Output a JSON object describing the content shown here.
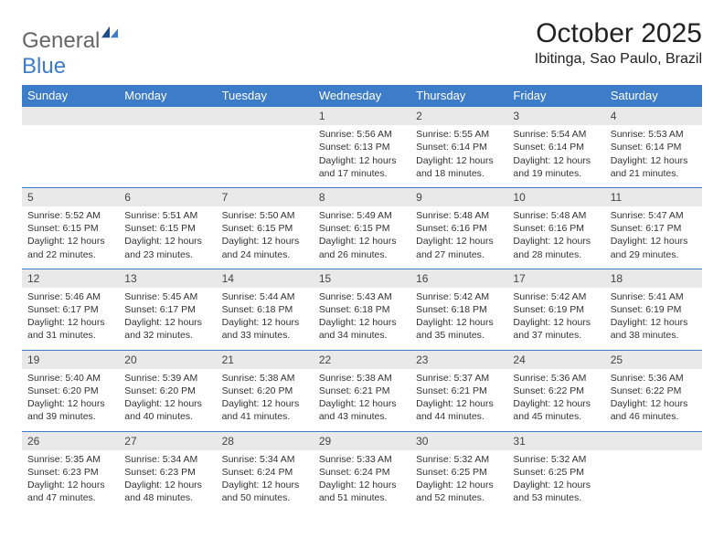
{
  "logo": {
    "word1": "General",
    "word2": "Blue",
    "color_gray": "#666666",
    "color_blue": "#3d7cc9"
  },
  "header": {
    "month_title": "October 2025",
    "location": "Ibitinga, Sao Paulo, Brazil"
  },
  "calendar": {
    "header_bg": "#3d7cc9",
    "header_fg": "#ffffff",
    "daynum_bg": "#e9e9e9",
    "border_color": "#3d7cc9",
    "day_labels": [
      "Sunday",
      "Monday",
      "Tuesday",
      "Wednesday",
      "Thursday",
      "Friday",
      "Saturday"
    ],
    "weeks": [
      [
        null,
        null,
        null,
        {
          "n": "1",
          "sr": "Sunrise: 5:56 AM",
          "ss": "Sunset: 6:13 PM",
          "dl1": "Daylight: 12 hours",
          "dl2": "and 17 minutes."
        },
        {
          "n": "2",
          "sr": "Sunrise: 5:55 AM",
          "ss": "Sunset: 6:14 PM",
          "dl1": "Daylight: 12 hours",
          "dl2": "and 18 minutes."
        },
        {
          "n": "3",
          "sr": "Sunrise: 5:54 AM",
          "ss": "Sunset: 6:14 PM",
          "dl1": "Daylight: 12 hours",
          "dl2": "and 19 minutes."
        },
        {
          "n": "4",
          "sr": "Sunrise: 5:53 AM",
          "ss": "Sunset: 6:14 PM",
          "dl1": "Daylight: 12 hours",
          "dl2": "and 21 minutes."
        }
      ],
      [
        {
          "n": "5",
          "sr": "Sunrise: 5:52 AM",
          "ss": "Sunset: 6:15 PM",
          "dl1": "Daylight: 12 hours",
          "dl2": "and 22 minutes."
        },
        {
          "n": "6",
          "sr": "Sunrise: 5:51 AM",
          "ss": "Sunset: 6:15 PM",
          "dl1": "Daylight: 12 hours",
          "dl2": "and 23 minutes."
        },
        {
          "n": "7",
          "sr": "Sunrise: 5:50 AM",
          "ss": "Sunset: 6:15 PM",
          "dl1": "Daylight: 12 hours",
          "dl2": "and 24 minutes."
        },
        {
          "n": "8",
          "sr": "Sunrise: 5:49 AM",
          "ss": "Sunset: 6:15 PM",
          "dl1": "Daylight: 12 hours",
          "dl2": "and 26 minutes."
        },
        {
          "n": "9",
          "sr": "Sunrise: 5:48 AM",
          "ss": "Sunset: 6:16 PM",
          "dl1": "Daylight: 12 hours",
          "dl2": "and 27 minutes."
        },
        {
          "n": "10",
          "sr": "Sunrise: 5:48 AM",
          "ss": "Sunset: 6:16 PM",
          "dl1": "Daylight: 12 hours",
          "dl2": "and 28 minutes."
        },
        {
          "n": "11",
          "sr": "Sunrise: 5:47 AM",
          "ss": "Sunset: 6:17 PM",
          "dl1": "Daylight: 12 hours",
          "dl2": "and 29 minutes."
        }
      ],
      [
        {
          "n": "12",
          "sr": "Sunrise: 5:46 AM",
          "ss": "Sunset: 6:17 PM",
          "dl1": "Daylight: 12 hours",
          "dl2": "and 31 minutes."
        },
        {
          "n": "13",
          "sr": "Sunrise: 5:45 AM",
          "ss": "Sunset: 6:17 PM",
          "dl1": "Daylight: 12 hours",
          "dl2": "and 32 minutes."
        },
        {
          "n": "14",
          "sr": "Sunrise: 5:44 AM",
          "ss": "Sunset: 6:18 PM",
          "dl1": "Daylight: 12 hours",
          "dl2": "and 33 minutes."
        },
        {
          "n": "15",
          "sr": "Sunrise: 5:43 AM",
          "ss": "Sunset: 6:18 PM",
          "dl1": "Daylight: 12 hours",
          "dl2": "and 34 minutes."
        },
        {
          "n": "16",
          "sr": "Sunrise: 5:42 AM",
          "ss": "Sunset: 6:18 PM",
          "dl1": "Daylight: 12 hours",
          "dl2": "and 35 minutes."
        },
        {
          "n": "17",
          "sr": "Sunrise: 5:42 AM",
          "ss": "Sunset: 6:19 PM",
          "dl1": "Daylight: 12 hours",
          "dl2": "and 37 minutes."
        },
        {
          "n": "18",
          "sr": "Sunrise: 5:41 AM",
          "ss": "Sunset: 6:19 PM",
          "dl1": "Daylight: 12 hours",
          "dl2": "and 38 minutes."
        }
      ],
      [
        {
          "n": "19",
          "sr": "Sunrise: 5:40 AM",
          "ss": "Sunset: 6:20 PM",
          "dl1": "Daylight: 12 hours",
          "dl2": "and 39 minutes."
        },
        {
          "n": "20",
          "sr": "Sunrise: 5:39 AM",
          "ss": "Sunset: 6:20 PM",
          "dl1": "Daylight: 12 hours",
          "dl2": "and 40 minutes."
        },
        {
          "n": "21",
          "sr": "Sunrise: 5:38 AM",
          "ss": "Sunset: 6:20 PM",
          "dl1": "Daylight: 12 hours",
          "dl2": "and 41 minutes."
        },
        {
          "n": "22",
          "sr": "Sunrise: 5:38 AM",
          "ss": "Sunset: 6:21 PM",
          "dl1": "Daylight: 12 hours",
          "dl2": "and 43 minutes."
        },
        {
          "n": "23",
          "sr": "Sunrise: 5:37 AM",
          "ss": "Sunset: 6:21 PM",
          "dl1": "Daylight: 12 hours",
          "dl2": "and 44 minutes."
        },
        {
          "n": "24",
          "sr": "Sunrise: 5:36 AM",
          "ss": "Sunset: 6:22 PM",
          "dl1": "Daylight: 12 hours",
          "dl2": "and 45 minutes."
        },
        {
          "n": "25",
          "sr": "Sunrise: 5:36 AM",
          "ss": "Sunset: 6:22 PM",
          "dl1": "Daylight: 12 hours",
          "dl2": "and 46 minutes."
        }
      ],
      [
        {
          "n": "26",
          "sr": "Sunrise: 5:35 AM",
          "ss": "Sunset: 6:23 PM",
          "dl1": "Daylight: 12 hours",
          "dl2": "and 47 minutes."
        },
        {
          "n": "27",
          "sr": "Sunrise: 5:34 AM",
          "ss": "Sunset: 6:23 PM",
          "dl1": "Daylight: 12 hours",
          "dl2": "and 48 minutes."
        },
        {
          "n": "28",
          "sr": "Sunrise: 5:34 AM",
          "ss": "Sunset: 6:24 PM",
          "dl1": "Daylight: 12 hours",
          "dl2": "and 50 minutes."
        },
        {
          "n": "29",
          "sr": "Sunrise: 5:33 AM",
          "ss": "Sunset: 6:24 PM",
          "dl1": "Daylight: 12 hours",
          "dl2": "and 51 minutes."
        },
        {
          "n": "30",
          "sr": "Sunrise: 5:32 AM",
          "ss": "Sunset: 6:25 PM",
          "dl1": "Daylight: 12 hours",
          "dl2": "and 52 minutes."
        },
        {
          "n": "31",
          "sr": "Sunrise: 5:32 AM",
          "ss": "Sunset: 6:25 PM",
          "dl1": "Daylight: 12 hours",
          "dl2": "and 53 minutes."
        },
        null
      ]
    ]
  }
}
